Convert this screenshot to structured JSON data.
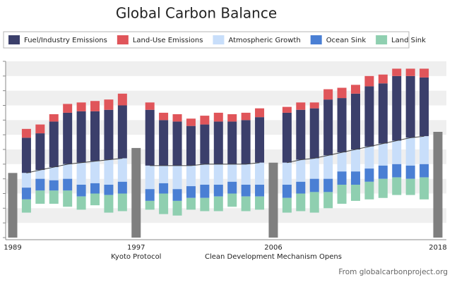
{
  "chart_data": {
    "type": "floating-stacked-bar",
    "title": "Global Carbon Balance",
    "source": "From globalcarbonproject.org",
    "categories": [
      "1989",
      null,
      null,
      null,
      null,
      null,
      null,
      null,
      null,
      "1997",
      null,
      null,
      null,
      null,
      null,
      null,
      null,
      null,
      null,
      "2006",
      null,
      null,
      null,
      null,
      null,
      null,
      null,
      null,
      null,
      null,
      null,
      "2018"
    ],
    "ylim": [
      0,
      12
    ],
    "yticks": [
      0,
      1,
      2,
      3,
      4,
      5,
      6,
      7,
      8,
      9,
      10,
      11,
      12
    ],
    "grid": "bands",
    "legend": "top",
    "baseline": [
      null,
      4.4,
      4.6,
      4.8,
      5.0,
      5.1,
      5.2,
      5.3,
      5.4,
      null,
      4.9,
      4.9,
      4.9,
      4.9,
      5.0,
      5.0,
      5.0,
      5.0,
      5.1,
      null,
      5.1,
      5.3,
      5.4,
      5.6,
      5.8,
      6.0,
      6.2,
      6.4,
      6.6,
      6.8,
      6.9,
      null
    ],
    "markers": {
      "color": "#7f7f7f",
      "values": [
        4.4,
        null,
        null,
        null,
        null,
        null,
        null,
        null,
        null,
        6.1,
        null,
        null,
        null,
        null,
        null,
        null,
        null,
        null,
        null,
        5.1,
        null,
        null,
        null,
        null,
        null,
        null,
        null,
        null,
        null,
        null,
        null,
        7.2
      ]
    },
    "series": [
      {
        "name": "Fuel/Industry Emissions",
        "color": "#3b3f6b",
        "stack": "up",
        "values": [
          null,
          2.4,
          2.5,
          3.1,
          3.5,
          3.5,
          3.4,
          3.4,
          3.6,
          null,
          3.8,
          3.1,
          3.0,
          2.7,
          2.7,
          2.9,
          2.9,
          3.0,
          3.1,
          null,
          3.4,
          3.4,
          3.4,
          3.8,
          3.7,
          3.8,
          4.1,
          4.1,
          4.4,
          4.2,
          4.0,
          null
        ]
      },
      {
        "name": "Land-Use Emissions",
        "color": "#e0555a",
        "stack": "up",
        "values": [
          null,
          0.6,
          0.6,
          0.5,
          0.6,
          0.6,
          0.7,
          0.7,
          0.8,
          null,
          0.5,
          0.5,
          0.5,
          0.5,
          0.6,
          0.6,
          0.5,
          0.5,
          0.6,
          null,
          0.4,
          0.5,
          0.4,
          0.7,
          0.7,
          0.6,
          0.7,
          0.6,
          0.5,
          0.5,
          0.6,
          null
        ]
      },
      {
        "name": "Atmospheric Growth",
        "color": "#c8defa",
        "stack": "down",
        "values": [
          null,
          1.0,
          0.6,
          0.9,
          1.0,
          1.5,
          1.5,
          1.7,
          1.6,
          null,
          1.6,
          1.2,
          1.6,
          1.4,
          1.4,
          1.4,
          1.2,
          1.4,
          1.5,
          null,
          1.5,
          1.5,
          1.4,
          1.6,
          1.3,
          1.5,
          1.5,
          1.5,
          1.6,
          1.9,
          1.9,
          null
        ]
      },
      {
        "name": "Ocean Sink",
        "color": "#4a7fd4",
        "stack": "down",
        "values": [
          null,
          0.8,
          0.8,
          0.7,
          0.8,
          0.8,
          0.7,
          0.7,
          0.8,
          null,
          0.8,
          0.7,
          0.8,
          0.8,
          0.9,
          0.8,
          0.8,
          0.8,
          0.8,
          null,
          0.9,
          0.8,
          0.9,
          0.9,
          0.9,
          0.9,
          0.9,
          0.9,
          0.9,
          0.9,
          0.9,
          null
        ]
      },
      {
        "name": "Land Sink",
        "color": "#8fcfb0",
        "stack": "down",
        "values": [
          null,
          0.9,
          0.9,
          0.9,
          1.1,
          0.9,
          0.8,
          1.2,
          1.2,
          null,
          0.6,
          1.4,
          1.0,
          0.8,
          0.9,
          1.0,
          0.9,
          1.0,
          0.9,
          null,
          1.0,
          1.2,
          1.4,
          1.1,
          1.3,
          1.1,
          1.2,
          1.3,
          1.2,
          1.1,
          1.5,
          null
        ]
      }
    ],
    "annotations": [
      {
        "text": "Kyoto Protocol",
        "category": 9
      },
      {
        "text": "Clean Development Mechanism Opens",
        "category": 19
      }
    ]
  }
}
